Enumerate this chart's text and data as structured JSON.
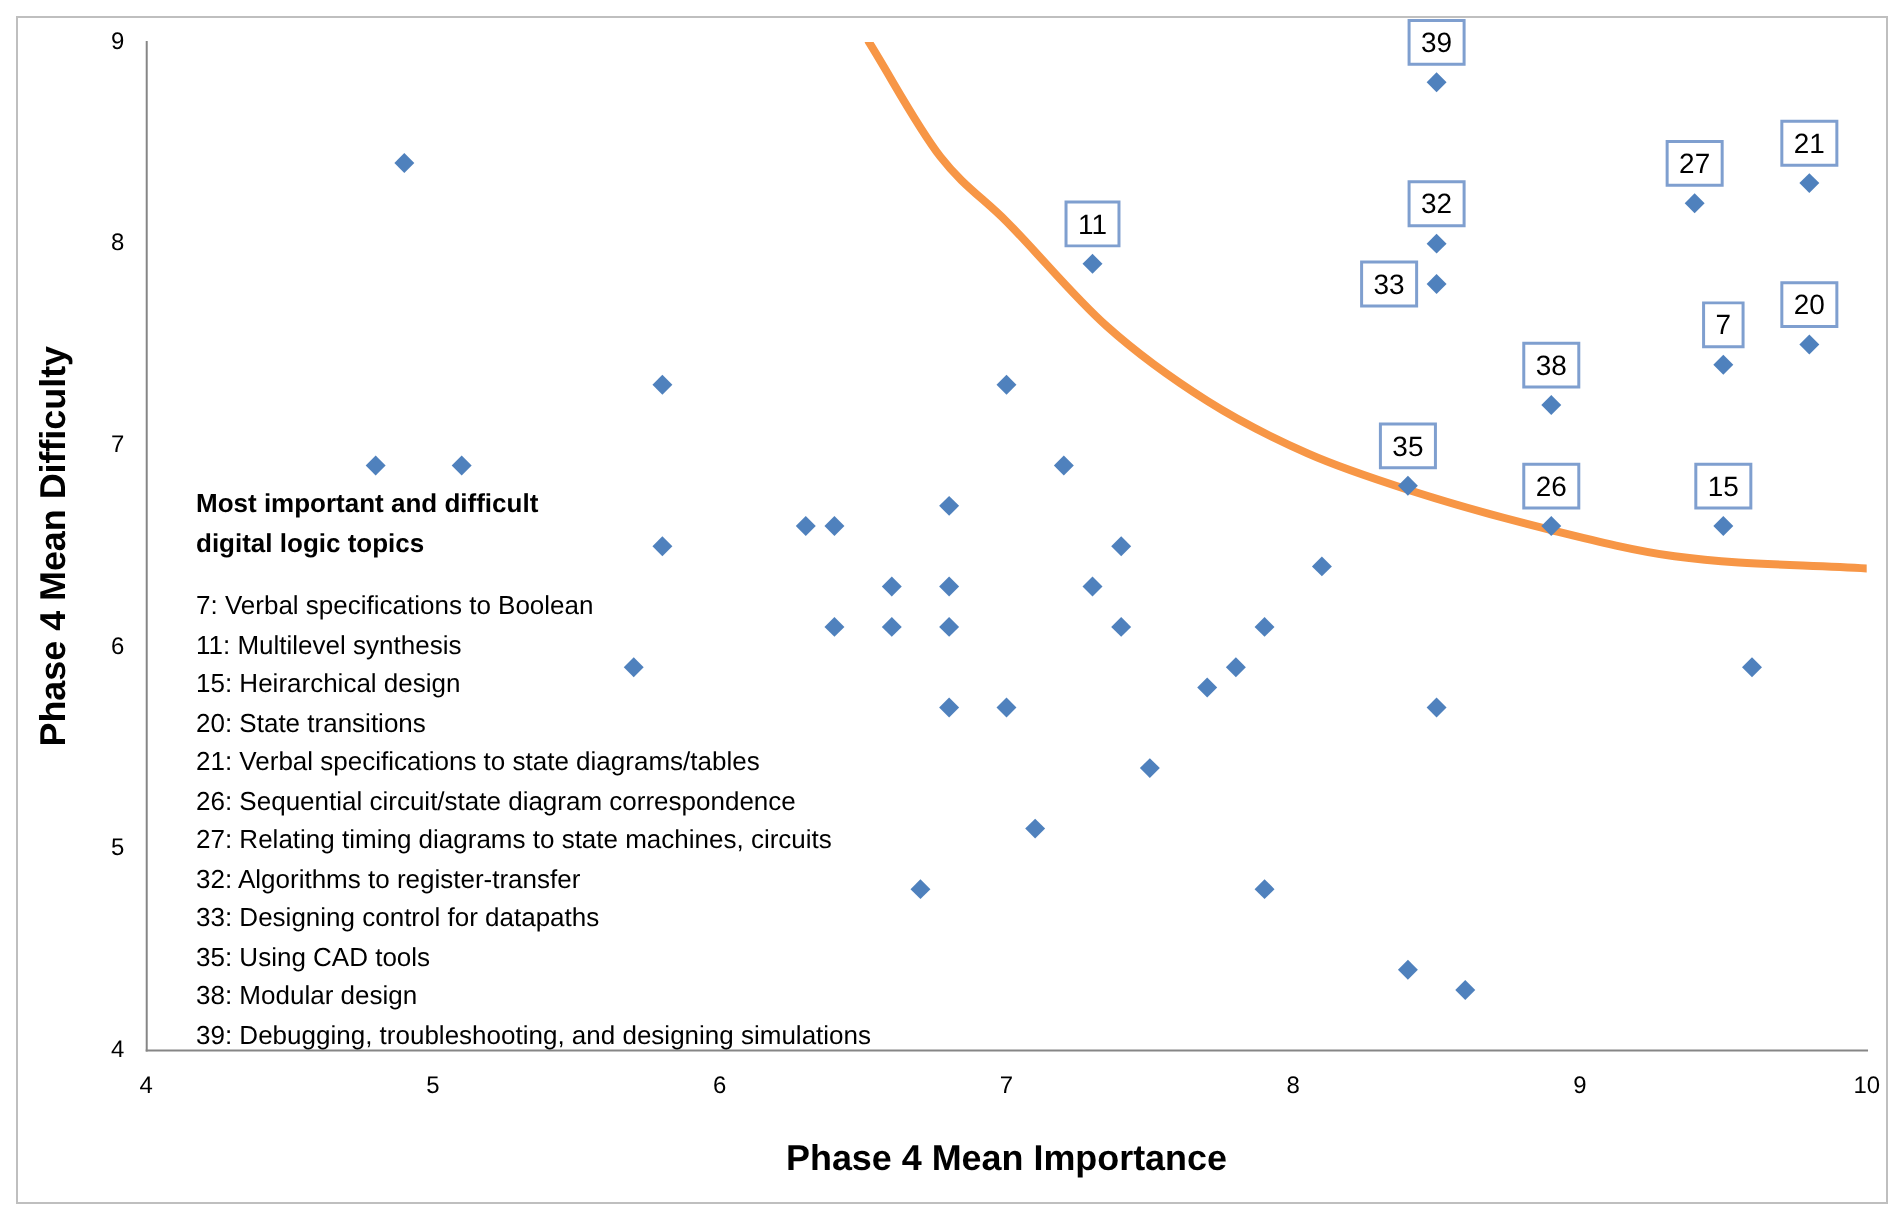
{
  "chart_data": {
    "type": "scatter",
    "xlabel": "Phase 4 Mean Importance",
    "ylabel": "Phase 4 Mean Difficulty",
    "xlim": [
      4,
      10
    ],
    "ylim": [
      4,
      9
    ],
    "xticks": [
      4,
      5,
      6,
      7,
      8,
      9,
      10
    ],
    "yticks": [
      4,
      5,
      6,
      7,
      8,
      9
    ],
    "grid": false,
    "legend": false,
    "marker": "diamond",
    "series": [
      {
        "color": "#4f81bd",
        "x": [
          4.9,
          4.8,
          5.1,
          5.8,
          5.8,
          5.7,
          6.3,
          6.4,
          6.4,
          6.6,
          6.6,
          6.8,
          6.8,
          6.8,
          6.8,
          6.7,
          7.0,
          7.0,
          7.1,
          7.2,
          7.3,
          7.4,
          7.4,
          7.5,
          7.7,
          7.8,
          7.9,
          7.9,
          8.1,
          8.5,
          8.4,
          8.6,
          9.6,
          7.3,
          8.5,
          8.5,
          8.5,
          9.4,
          9.8,
          9.5,
          9.8,
          8.9,
          8.4,
          8.9,
          9.5
        ],
        "values": [
          8.4,
          6.9,
          6.9,
          7.3,
          6.5,
          5.9,
          6.6,
          6.6,
          6.1,
          6.3,
          6.1,
          6.7,
          6.3,
          6.1,
          5.7,
          4.8,
          7.3,
          5.7,
          5.1,
          6.9,
          6.3,
          6.5,
          6.1,
          5.4,
          5.8,
          5.9,
          6.1,
          4.8,
          6.4,
          5.7,
          4.4,
          4.3,
          5.9,
          7.9,
          8.8,
          8.0,
          7.8,
          8.2,
          8.3,
          7.4,
          7.5,
          7.2,
          6.8,
          6.6,
          6.6
        ]
      },
      {
        "type": "line",
        "color": "#f79646",
        "marker": "none",
        "x": [
          6.52,
          6.77,
          7.0,
          7.35,
          7.7,
          8.05,
          8.4,
          8.9,
          9.33,
          10.0
        ],
        "values": [
          9.0,
          8.43,
          8.11,
          7.59,
          7.22,
          6.96,
          6.78,
          6.58,
          6.45,
          6.39
        ]
      }
    ],
    "annotations": [
      {
        "text": "11",
        "x": 7.3,
        "y": 7.9
      },
      {
        "text": "39",
        "x": 8.5,
        "y": 8.8
      },
      {
        "text": "32",
        "x": 8.5,
        "y": 8.0
      },
      {
        "text": "33",
        "x": 8.5,
        "y": 7.8
      },
      {
        "text": "27",
        "x": 9.4,
        "y": 8.2
      },
      {
        "text": "21",
        "x": 9.8,
        "y": 8.3
      },
      {
        "text": "7",
        "x": 9.5,
        "y": 7.4
      },
      {
        "text": "20",
        "x": 9.8,
        "y": 7.5
      },
      {
        "text": "38",
        "x": 8.9,
        "y": 7.2
      },
      {
        "text": "35",
        "x": 8.4,
        "y": 6.8
      },
      {
        "text": "26",
        "x": 8.9,
        "y": 6.6
      },
      {
        "text": "15",
        "x": 9.5,
        "y": 6.6
      },
      "Most important and difficult digital logic topics",
      "7:  Verbal specifications to Boolean",
      "11: Multilevel synthesis",
      "15: Heirarchical design",
      "20: State transitions",
      "21: Verbal specifications to state diagrams/tables",
      "26: Sequential circuit/state diagram correspondence",
      "27: Relating timing diagrams to state machines, circuits",
      "32: Algorithms to register-transfer",
      "33: Designing control for datapaths",
      "35: Using CAD tools",
      "38: Modular design",
      "39: Debugging, troubleshooting, and designing simulations"
    ]
  }
}
